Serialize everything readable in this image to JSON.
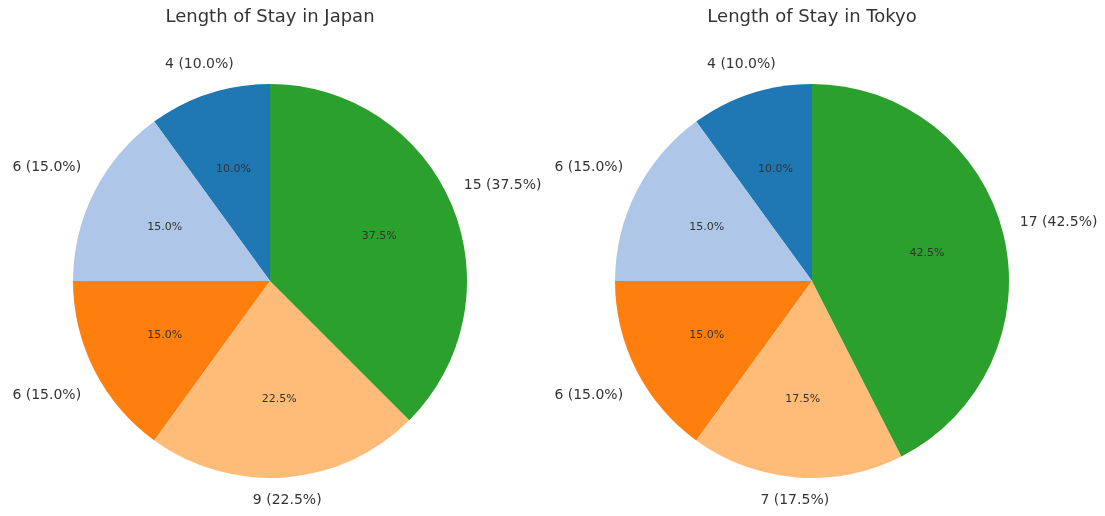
{
  "chart_data": [
    {
      "type": "pie",
      "title": "Length of Stay in Japan",
      "categories": [
        null,
        null,
        null,
        null,
        null
      ],
      "values": [
        4,
        6,
        6,
        9,
        15
      ],
      "colors": [
        "#1f77b4",
        "#aec7e8",
        "#ff7f0e",
        "#ffbb78",
        "#2ca02c"
      ],
      "value_labels": [
        "4 (10.0%)",
        "6 (15.0%)",
        "6 (15.0%)",
        "9 (22.5%)",
        "15 (37.5%)"
      ],
      "annotations": [
        "10.0%",
        "15.0%",
        "15.0%",
        "22.5%",
        "37.5%"
      ]
    },
    {
      "type": "pie",
      "title": "Length of Stay in Tokyo",
      "categories": [
        null,
        null,
        null,
        null,
        null
      ],
      "values": [
        4,
        6,
        6,
        7,
        17
      ],
      "colors": [
        "#1f77b4",
        "#aec7e8",
        "#ff7f0e",
        "#ffbb78",
        "#2ca02c"
      ],
      "value_labels": [
        "4 (10.0%)",
        "6 (15.0%)",
        "6 (15.0%)",
        "7 (17.5%)",
        "17 (42.5%)"
      ],
      "annotations": [
        "10.0%",
        "15.0%",
        "15.0%",
        "17.5%",
        "42.5%"
      ]
    }
  ]
}
